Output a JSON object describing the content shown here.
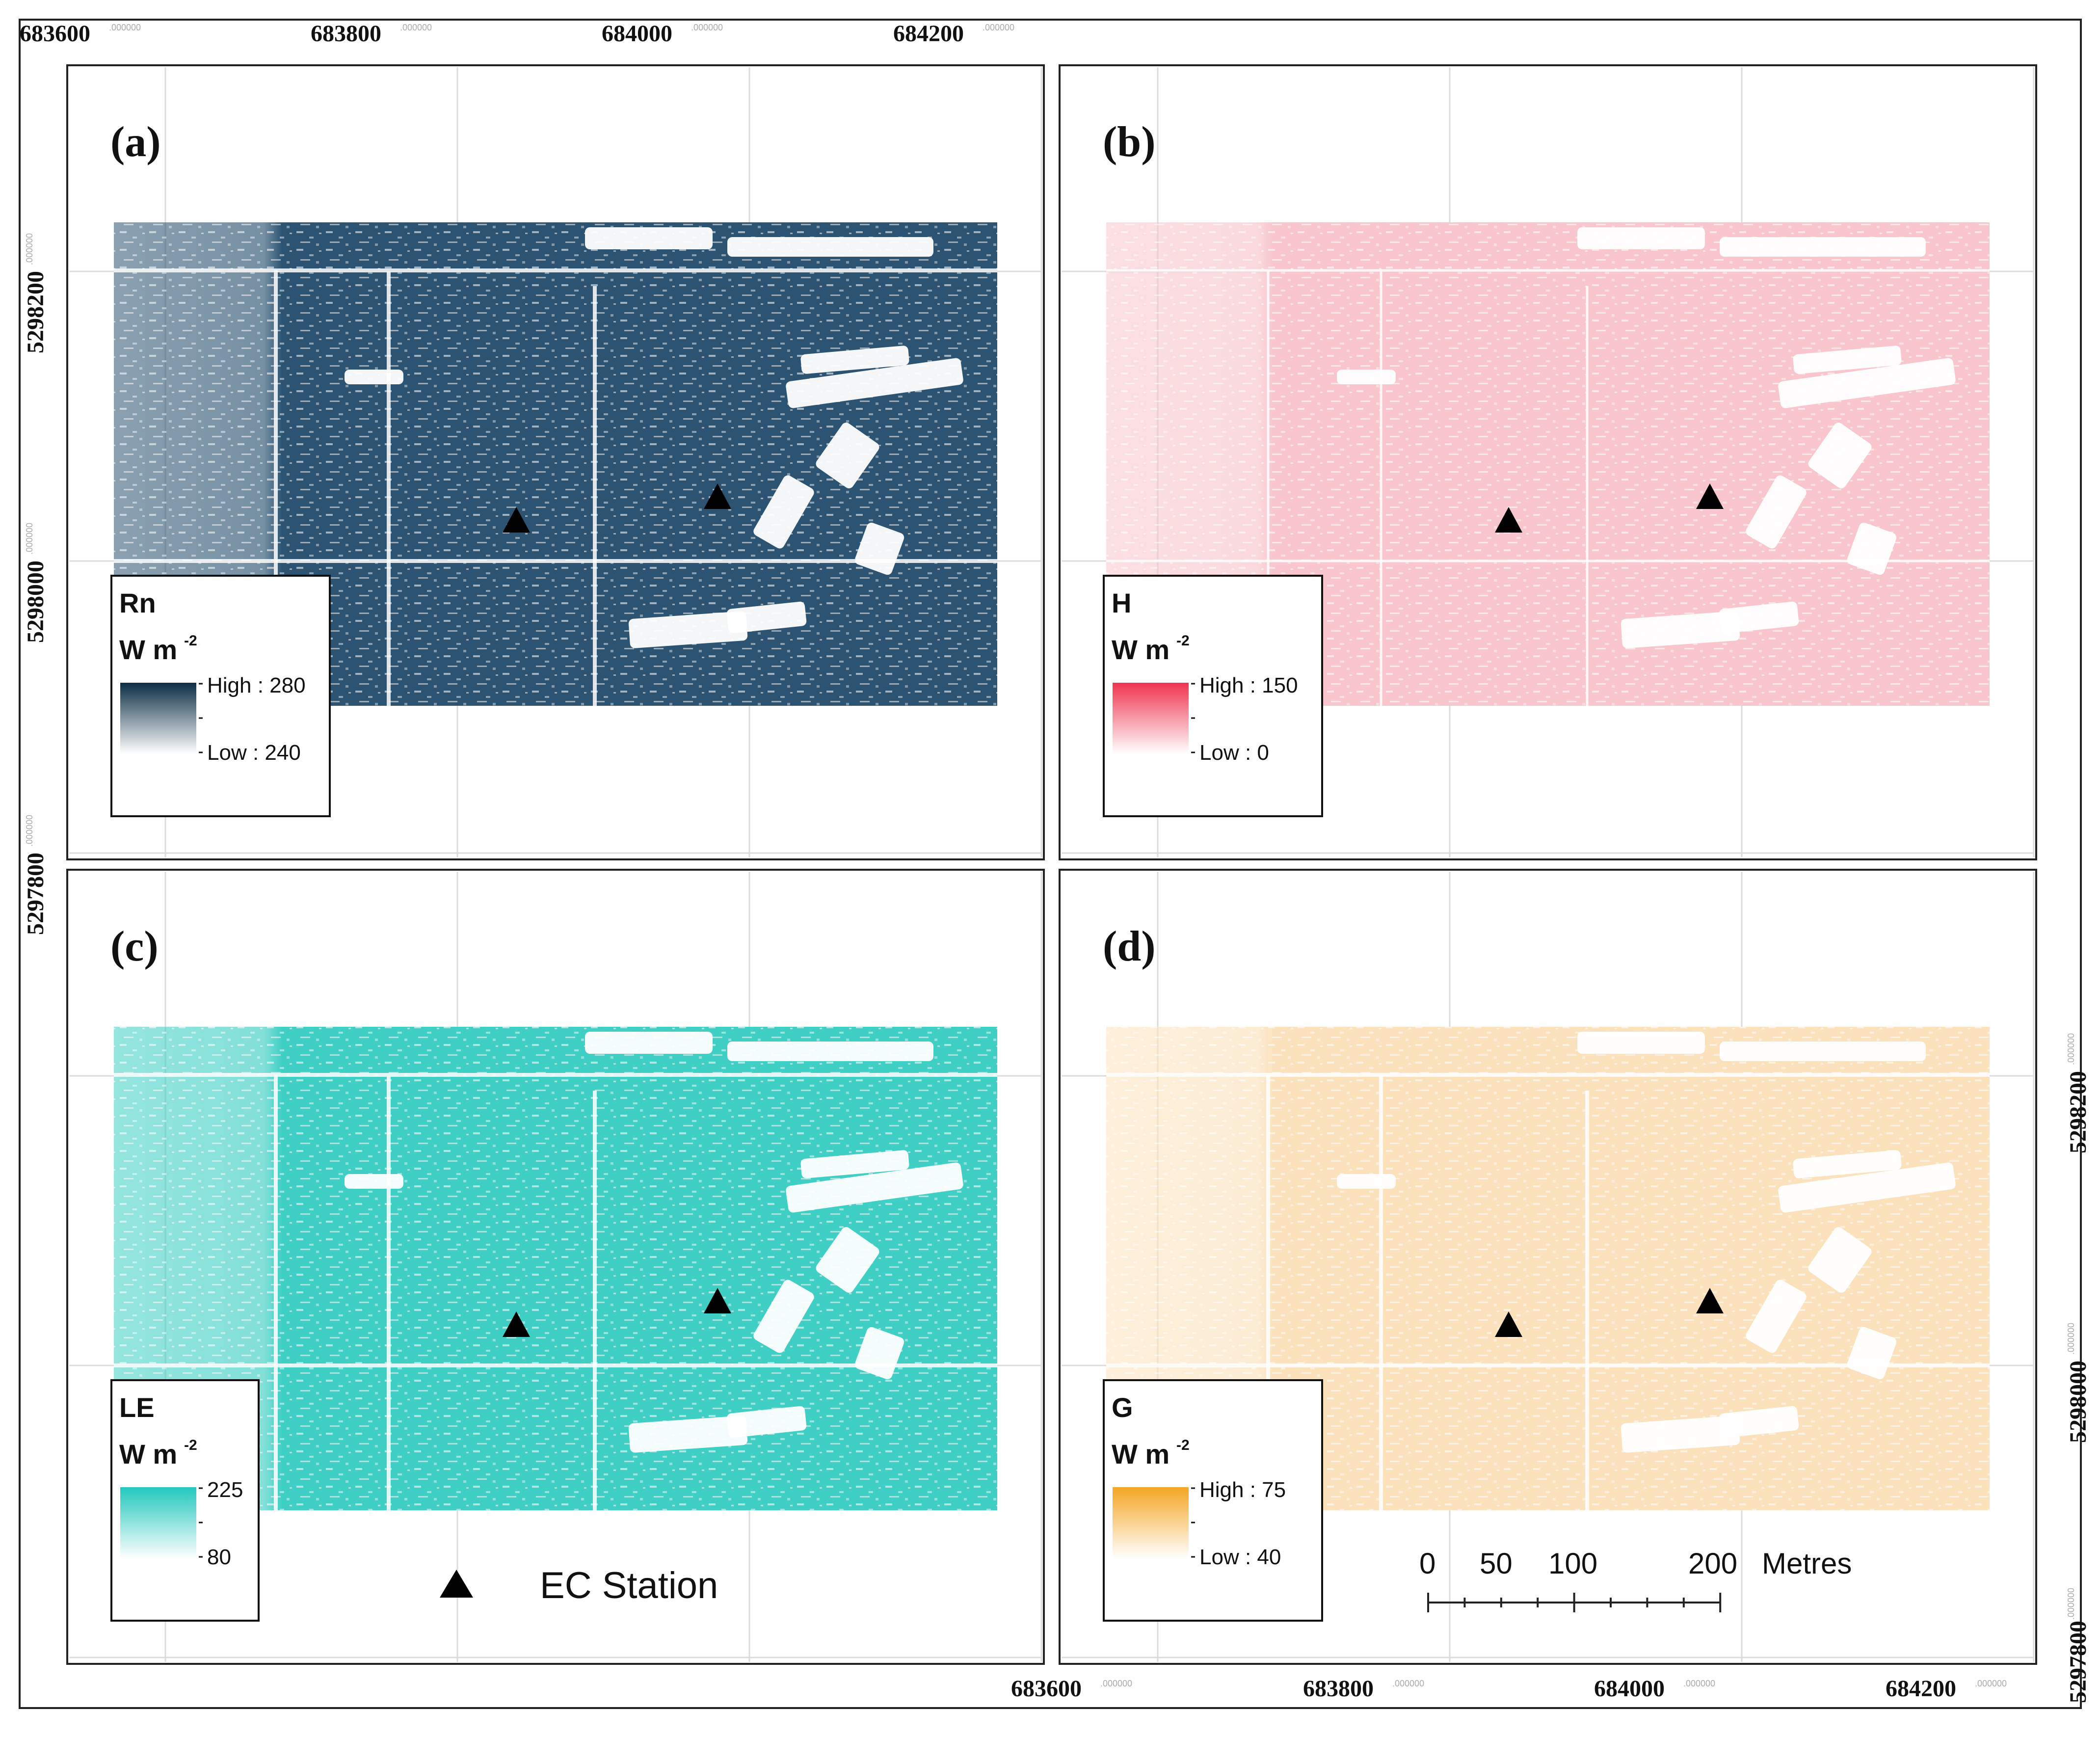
{
  "figure": {
    "top_x_ticks": [
      "683600",
      "683800",
      "684000",
      "684200"
    ],
    "bottom_x_ticks": [
      "683600",
      "683800",
      "684000",
      "684200"
    ],
    "left_y_ticks": [
      "5298200",
      "5298000",
      "5297800"
    ],
    "right_y_ticks": [
      "5298200",
      "5298000",
      "5297800"
    ],
    "tick_suffix": ".000000"
  },
  "panels": [
    {
      "id": "a",
      "label": "(a)",
      "variable": "Rn",
      "unit": "W m",
      "unit_sup": "-2",
      "high_text": "High : 280",
      "low_text": "Low : 240",
      "color_high": "#0b2e45",
      "color_mid": "#2c5472",
      "color_low": "#ffffff"
    },
    {
      "id": "b",
      "label": "(b)",
      "variable": "H",
      "unit": "W m",
      "unit_sup": "-2",
      "high_text": "High : 150",
      "low_text": "Low : 0",
      "color_high": "#f0344f",
      "color_mid": "#f8c6cc",
      "color_low": "#ffffff"
    },
    {
      "id": "c",
      "label": "(c)",
      "variable": "LE",
      "unit": "W m",
      "unit_sup": "-2",
      "high_text": "225",
      "low_text": "80",
      "color_high": "#22c7bd",
      "color_mid": "#3fcfc4",
      "color_low": "#ffffff"
    },
    {
      "id": "d",
      "label": "(d)",
      "variable": "G",
      "unit": "W m",
      "unit_sup": "-2",
      "high_text": "High : 75",
      "low_text": "Low : 40",
      "color_high": "#f5a623",
      "color_mid": "#fbe2bd",
      "color_low": "#ffffff"
    }
  ],
  "key": {
    "symbol": "triangle",
    "label": "EC Station"
  },
  "scale_bar": {
    "labels": [
      "0",
      "50",
      "100",
      "200"
    ],
    "unit": "Metres"
  }
}
